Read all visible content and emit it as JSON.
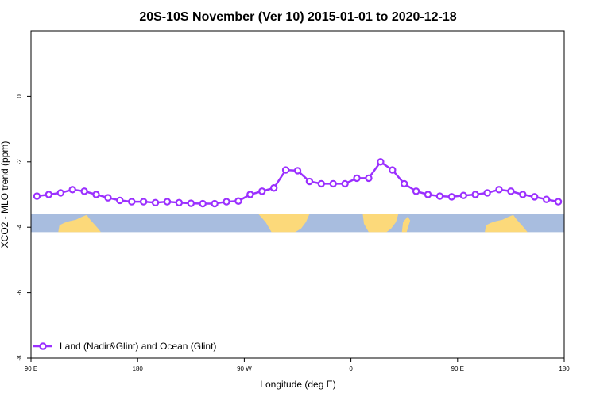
{
  "chart_data": {
    "type": "line",
    "title": "20S-10S November (Ver 10)   2015-01-01 to 2020-12-18",
    "xlabel": "Longitude (deg E)",
    "ylabel": "XCO2 - MLO trend (ppm)",
    "x_ticks": [
      {
        "value": 90,
        "label": "90 E"
      },
      {
        "value": 180,
        "label": "180"
      },
      {
        "value": 270,
        "label": "90 W"
      },
      {
        "value": 360,
        "label": "0"
      },
      {
        "value": 450,
        "label": "90 E"
      },
      {
        "value": 540,
        "label": "180"
      }
    ],
    "y_ticks": [
      0,
      -2,
      -4,
      -6,
      -8
    ],
    "xlim": [
      90,
      540
    ],
    "ylim": [
      -8,
      2
    ],
    "series": [
      {
        "name": "Land (Nadir&Glint) and Ocean (Glint)",
        "color": "#9b30ff",
        "x": [
          95,
          105,
          115,
          125,
          135,
          145,
          155,
          165,
          175,
          185,
          195,
          205,
          215,
          225,
          235,
          245,
          255,
          265,
          275,
          285,
          295,
          305,
          315,
          325,
          335,
          345,
          355,
          365,
          375,
          385,
          395,
          405,
          415,
          425,
          435,
          445,
          455,
          465,
          475,
          485,
          495,
          505,
          515,
          525,
          535
        ],
        "y": [
          -3.05,
          -3.0,
          -2.95,
          -2.85,
          -2.9,
          -3.0,
          -3.1,
          -3.18,
          -3.22,
          -3.22,
          -3.25,
          -3.22,
          -3.25,
          -3.27,
          -3.28,
          -3.28,
          -3.22,
          -3.2,
          -3.0,
          -2.9,
          -2.8,
          -2.25,
          -2.27,
          -2.6,
          -2.67,
          -2.67,
          -2.67,
          -2.5,
          -2.5,
          -2.0,
          -2.25,
          -2.67,
          -2.9,
          -3.0,
          -3.05,
          -3.07,
          -3.03,
          -3.0,
          -2.95,
          -2.85,
          -2.9,
          -3.0,
          -3.07,
          -3.15,
          -3.22
        ]
      }
    ],
    "map_strip": {
      "y_top": -3.6,
      "y_bottom": -4.15,
      "ocean_color": "#a8bddf",
      "land_color": "#fcd97a"
    },
    "legend": {
      "position": "bottom-left",
      "label": "Land (Nadir&Glint) and Ocean (Glint)"
    },
    "grid": false
  }
}
